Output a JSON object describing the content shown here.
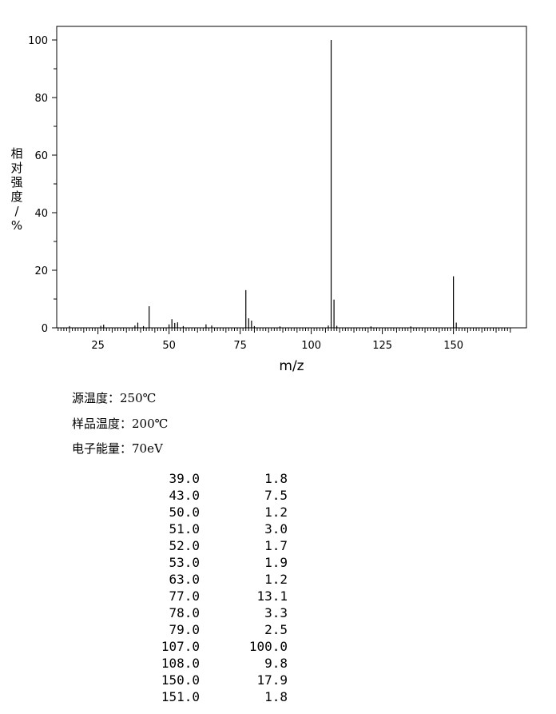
{
  "chart_data": {
    "type": "bar",
    "xlabel": "m/z",
    "ylabel": "相对强度/%",
    "xlim": [
      10,
      170
    ],
    "ylim": [
      0,
      105
    ],
    "x_ticks": [
      25,
      50,
      75,
      100,
      125,
      150
    ],
    "y_ticks": [
      0,
      20,
      40,
      60,
      80,
      100
    ],
    "grid": false,
    "peaks": [
      {
        "x": 15,
        "y": 0.6
      },
      {
        "x": 26,
        "y": 0.7
      },
      {
        "x": 27,
        "y": 1.1
      },
      {
        "x": 38,
        "y": 0.8
      },
      {
        "x": 39,
        "y": 1.8
      },
      {
        "x": 41,
        "y": 0.6
      },
      {
        "x": 43,
        "y": 7.5
      },
      {
        "x": 50,
        "y": 1.2
      },
      {
        "x": 51,
        "y": 3.0
      },
      {
        "x": 52,
        "y": 1.7
      },
      {
        "x": 53,
        "y": 1.9
      },
      {
        "x": 55,
        "y": 0.6
      },
      {
        "x": 63,
        "y": 1.2
      },
      {
        "x": 65,
        "y": 0.8
      },
      {
        "x": 77,
        "y": 13.1
      },
      {
        "x": 78,
        "y": 3.3
      },
      {
        "x": 79,
        "y": 2.5
      },
      {
        "x": 80,
        "y": 0.6
      },
      {
        "x": 89,
        "y": 0.5
      },
      {
        "x": 106,
        "y": 0.8
      },
      {
        "x": 107,
        "y": 100.0
      },
      {
        "x": 108,
        "y": 9.8
      },
      {
        "x": 109,
        "y": 0.7
      },
      {
        "x": 121,
        "y": 0.5
      },
      {
        "x": 135,
        "y": 0.5
      },
      {
        "x": 150,
        "y": 17.9
      },
      {
        "x": 151,
        "y": 1.8
      }
    ]
  },
  "conditions": {
    "source_temp": "源温度：250℃",
    "sample_temp": "样品温度：200℃",
    "electron_energy": "电子能量：70eV"
  },
  "peak_table": [
    {
      "mz": "39.0",
      "intensity": "1.8"
    },
    {
      "mz": "43.0",
      "intensity": "7.5"
    },
    {
      "mz": "50.0",
      "intensity": "1.2"
    },
    {
      "mz": "51.0",
      "intensity": "3.0"
    },
    {
      "mz": "52.0",
      "intensity": "1.7"
    },
    {
      "mz": "53.0",
      "intensity": "1.9"
    },
    {
      "mz": "63.0",
      "intensity": "1.2"
    },
    {
      "mz": "77.0",
      "intensity": "13.1"
    },
    {
      "mz": "78.0",
      "intensity": "3.3"
    },
    {
      "mz": "79.0",
      "intensity": "2.5"
    },
    {
      "mz": "107.0",
      "intensity": "100.0"
    },
    {
      "mz": "108.0",
      "intensity": "9.8"
    },
    {
      "mz": "150.0",
      "intensity": "17.9"
    },
    {
      "mz": "151.0",
      "intensity": "1.8"
    }
  ]
}
